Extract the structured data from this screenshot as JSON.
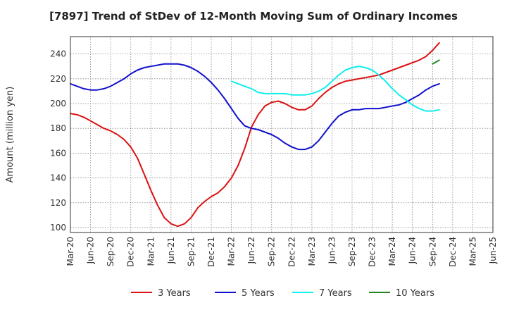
{
  "chart_data": {
    "type": "line",
    "title": "[7897]  Trend of StDev of 12-Month Moving Sum of Ordinary Incomes",
    "ylabel": "Amount (million yen)",
    "xlabel": "",
    "x_ticks": [
      "Mar-20",
      "Jun-20",
      "Sep-20",
      "Dec-20",
      "Mar-21",
      "Jun-21",
      "Sep-21",
      "Dec-21",
      "Mar-22",
      "Jun-22",
      "Sep-22",
      "Dec-22",
      "Mar-23",
      "Jun-23",
      "Sep-23",
      "Dec-23",
      "Mar-24",
      "Jun-24",
      "Sep-24",
      "Dec-24",
      "Mar-25",
      "Jun-25"
    ],
    "y_ticks": [
      100,
      120,
      140,
      160,
      180,
      200,
      220,
      240
    ],
    "ylim": [
      96,
      254
    ],
    "grid": true,
    "legend_position": "bottom",
    "series": [
      {
        "name": "3 Years",
        "color": "#dd1111",
        "values": [
          {
            "x": "2020-03",
            "y": 192
          },
          {
            "x": "2020-04",
            "y": 191
          },
          {
            "x": "2020-05",
            "y": 189
          },
          {
            "x": "2020-06",
            "y": 186
          },
          {
            "x": "2020-07",
            "y": 183
          },
          {
            "x": "2020-08",
            "y": 180
          },
          {
            "x": "2020-09",
            "y": 178
          },
          {
            "x": "2020-10",
            "y": 175
          },
          {
            "x": "2020-11",
            "y": 171
          },
          {
            "x": "2020-12",
            "y": 165
          },
          {
            "x": "2021-01",
            "y": 156
          },
          {
            "x": "2021-02",
            "y": 143
          },
          {
            "x": "2021-03",
            "y": 130
          },
          {
            "x": "2021-04",
            "y": 118
          },
          {
            "x": "2021-05",
            "y": 108
          },
          {
            "x": "2021-06",
            "y": 103
          },
          {
            "x": "2021-07",
            "y": 101
          },
          {
            "x": "2021-08",
            "y": 103
          },
          {
            "x": "2021-09",
            "y": 108
          },
          {
            "x": "2021-10",
            "y": 116
          },
          {
            "x": "2021-11",
            "y": 121
          },
          {
            "x": "2021-12",
            "y": 125
          },
          {
            "x": "2022-01",
            "y": 128
          },
          {
            "x": "2022-02",
            "y": 133
          },
          {
            "x": "2022-03",
            "y": 140
          },
          {
            "x": "2022-04",
            "y": 150
          },
          {
            "x": "2022-05",
            "y": 164
          },
          {
            "x": "2022-06",
            "y": 181
          },
          {
            "x": "2022-07",
            "y": 191
          },
          {
            "x": "2022-08",
            "y": 198
          },
          {
            "x": "2022-09",
            "y": 201
          },
          {
            "x": "2022-10",
            "y": 202
          },
          {
            "x": "2022-11",
            "y": 200
          },
          {
            "x": "2022-12",
            "y": 197
          },
          {
            "x": "2023-01",
            "y": 195
          },
          {
            "x": "2023-02",
            "y": 195
          },
          {
            "x": "2023-03",
            "y": 198
          },
          {
            "x": "2023-04",
            "y": 204
          },
          {
            "x": "2023-05",
            "y": 209
          },
          {
            "x": "2023-06",
            "y": 213
          },
          {
            "x": "2023-07",
            "y": 216
          },
          {
            "x": "2023-08",
            "y": 218
          },
          {
            "x": "2023-09",
            "y": 219
          },
          {
            "x": "2023-10",
            "y": 220
          },
          {
            "x": "2023-11",
            "y": 221
          },
          {
            "x": "2023-12",
            "y": 222
          },
          {
            "x": "2024-01",
            "y": 223
          },
          {
            "x": "2024-02",
            "y": 225
          },
          {
            "x": "2024-03",
            "y": 227
          },
          {
            "x": "2024-04",
            "y": 229
          },
          {
            "x": "2024-05",
            "y": 231
          },
          {
            "x": "2024-06",
            "y": 233
          },
          {
            "x": "2024-07",
            "y": 235
          },
          {
            "x": "2024-08",
            "y": 238
          },
          {
            "x": "2024-09",
            "y": 243
          },
          {
            "x": "2024-10",
            "y": 249
          }
        ]
      },
      {
        "name": "5 Years",
        "color": "#1111cc",
        "values": [
          {
            "x": "2020-03",
            "y": 216
          },
          {
            "x": "2020-04",
            "y": 214
          },
          {
            "x": "2020-05",
            "y": 212
          },
          {
            "x": "2020-06",
            "y": 211
          },
          {
            "x": "2020-07",
            "y": 211
          },
          {
            "x": "2020-08",
            "y": 212
          },
          {
            "x": "2020-09",
            "y": 214
          },
          {
            "x": "2020-10",
            "y": 217
          },
          {
            "x": "2020-11",
            "y": 220
          },
          {
            "x": "2020-12",
            "y": 224
          },
          {
            "x": "2021-01",
            "y": 227
          },
          {
            "x": "2021-02",
            "y": 229
          },
          {
            "x": "2021-03",
            "y": 230
          },
          {
            "x": "2021-04",
            "y": 231
          },
          {
            "x": "2021-05",
            "y": 232
          },
          {
            "x": "2021-06",
            "y": 232
          },
          {
            "x": "2021-07",
            "y": 232
          },
          {
            "x": "2021-08",
            "y": 231
          },
          {
            "x": "2021-09",
            "y": 229
          },
          {
            "x": "2021-10",
            "y": 226
          },
          {
            "x": "2021-11",
            "y": 222
          },
          {
            "x": "2021-12",
            "y": 217
          },
          {
            "x": "2022-01",
            "y": 211
          },
          {
            "x": "2022-02",
            "y": 204
          },
          {
            "x": "2022-03",
            "y": 196
          },
          {
            "x": "2022-04",
            "y": 188
          },
          {
            "x": "2022-05",
            "y": 182
          },
          {
            "x": "2022-06",
            "y": 180
          },
          {
            "x": "2022-07",
            "y": 179
          },
          {
            "x": "2022-08",
            "y": 177
          },
          {
            "x": "2022-09",
            "y": 175
          },
          {
            "x": "2022-10",
            "y": 172
          },
          {
            "x": "2022-11",
            "y": 168
          },
          {
            "x": "2022-12",
            "y": 165
          },
          {
            "x": "2023-01",
            "y": 163
          },
          {
            "x": "2023-02",
            "y": 163
          },
          {
            "x": "2023-03",
            "y": 165
          },
          {
            "x": "2023-04",
            "y": 170
          },
          {
            "x": "2023-05",
            "y": 177
          },
          {
            "x": "2023-06",
            "y": 184
          },
          {
            "x": "2023-07",
            "y": 190
          },
          {
            "x": "2023-08",
            "y": 193
          },
          {
            "x": "2023-09",
            "y": 195
          },
          {
            "x": "2023-10",
            "y": 195
          },
          {
            "x": "2023-11",
            "y": 196
          },
          {
            "x": "2023-12",
            "y": 196
          },
          {
            "x": "2024-01",
            "y": 196
          },
          {
            "x": "2024-02",
            "y": 197
          },
          {
            "x": "2024-03",
            "y": 198
          },
          {
            "x": "2024-04",
            "y": 199
          },
          {
            "x": "2024-05",
            "y": 201
          },
          {
            "x": "2024-06",
            "y": 204
          },
          {
            "x": "2024-07",
            "y": 207
          },
          {
            "x": "2024-08",
            "y": 211
          },
          {
            "x": "2024-09",
            "y": 214
          },
          {
            "x": "2024-10",
            "y": 216
          }
        ]
      },
      {
        "name": "7 Years",
        "color": "#11eeee",
        "values": [
          {
            "x": "2022-03",
            "y": 218
          },
          {
            "x": "2022-04",
            "y": 216
          },
          {
            "x": "2022-05",
            "y": 214
          },
          {
            "x": "2022-06",
            "y": 212
          },
          {
            "x": "2022-07",
            "y": 209
          },
          {
            "x": "2022-08",
            "y": 208
          },
          {
            "x": "2022-09",
            "y": 208
          },
          {
            "x": "2022-10",
            "y": 208
          },
          {
            "x": "2022-11",
            "y": 208
          },
          {
            "x": "2022-12",
            "y": 207
          },
          {
            "x": "2023-01",
            "y": 207
          },
          {
            "x": "2023-02",
            "y": 207
          },
          {
            "x": "2023-03",
            "y": 208
          },
          {
            "x": "2023-04",
            "y": 210
          },
          {
            "x": "2023-05",
            "y": 213
          },
          {
            "x": "2023-06",
            "y": 218
          },
          {
            "x": "2023-07",
            "y": 223
          },
          {
            "x": "2023-08",
            "y": 227
          },
          {
            "x": "2023-09",
            "y": 229
          },
          {
            "x": "2023-10",
            "y": 230
          },
          {
            "x": "2023-11",
            "y": 229
          },
          {
            "x": "2023-12",
            "y": 227
          },
          {
            "x": "2024-01",
            "y": 223
          },
          {
            "x": "2024-02",
            "y": 218
          },
          {
            "x": "2024-03",
            "y": 212
          },
          {
            "x": "2024-04",
            "y": 207
          },
          {
            "x": "2024-05",
            "y": 203
          },
          {
            "x": "2024-06",
            "y": 199
          },
          {
            "x": "2024-07",
            "y": 196
          },
          {
            "x": "2024-08",
            "y": 194
          },
          {
            "x": "2024-09",
            "y": 194
          },
          {
            "x": "2024-10",
            "y": 195
          }
        ]
      },
      {
        "name": "10 Years",
        "color": "#228822",
        "values": [
          {
            "x": "2024-09",
            "y": 232
          },
          {
            "x": "2024-10",
            "y": 235
          }
        ]
      }
    ]
  }
}
